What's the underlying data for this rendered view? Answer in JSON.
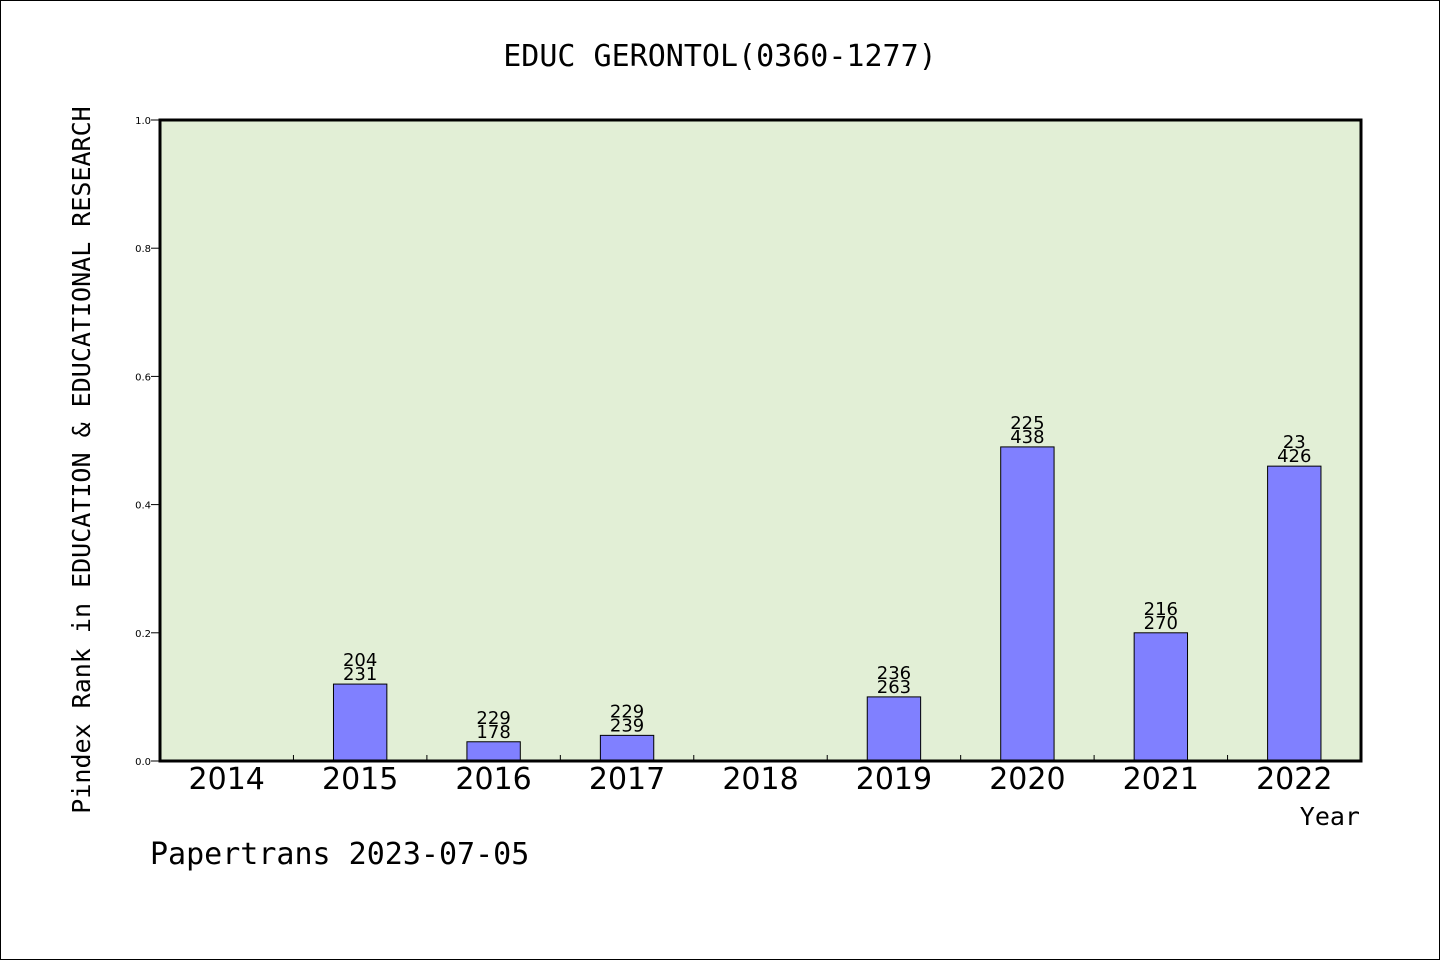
{
  "chart_data": {
    "type": "bar",
    "title": "EDUC GERONTOL(0360-1277)",
    "xlabel": "Year",
    "ylabel": "Pindex Rank in EDUCATION & EDUCATIONAL RESEARCH",
    "footer": "Papertrans 2023-07-05",
    "ylim": [
      0,
      1.0
    ],
    "yticks": [
      "0.0",
      "0.2",
      "0.4",
      "0.6",
      "0.8",
      "1.0"
    ],
    "categories": [
      "2014",
      "2015",
      "2016",
      "2017",
      "2018",
      "2019",
      "2020",
      "2021",
      "2022"
    ],
    "values": [
      0,
      0.12,
      0.03,
      0.04,
      0,
      0.1,
      0.49,
      0.2,
      0.46
    ],
    "labels_top": [
      "",
      "204",
      "229",
      "229",
      "",
      "236",
      "225",
      "216",
      "23"
    ],
    "labels_bottom": [
      "",
      "231",
      "178",
      "239",
      "",
      "263",
      "438",
      "270",
      "426"
    ],
    "plot_background": "#e2efd6",
    "bar_color": "#8080ff",
    "grid": false
  }
}
